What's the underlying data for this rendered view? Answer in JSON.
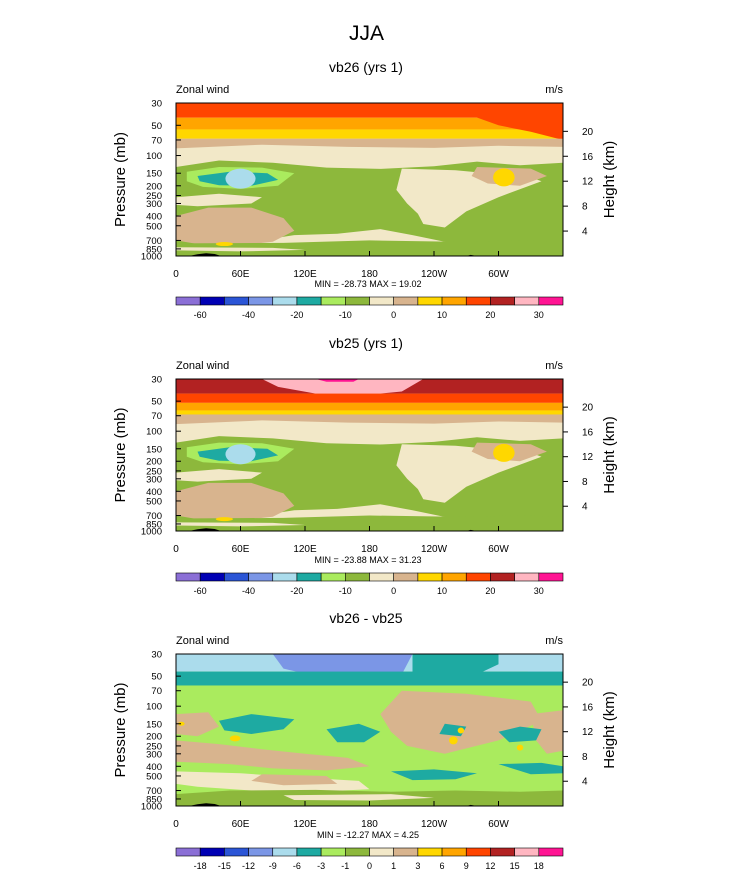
{
  "page_title": "JJA",
  "palette_main": [
    "#8b6fd6",
    "#0000b4",
    "#2b55d6",
    "#7b96e6",
    "#abdcec",
    "#1eaaa2",
    "#aaeb5e",
    "#8db83c",
    "#f2e8c8",
    "#d8b48e",
    "#ffd700",
    "#ffa500",
    "#ff4500",
    "#b22222",
    "#ffb6c1",
    "#ff1493"
  ],
  "palette_diff": [
    "#8b6fd6",
    "#0000b4",
    "#2b55d6",
    "#7b96e6",
    "#abdcec",
    "#1eaaa2",
    "#aaeb5e",
    "#8db83c",
    "#f2e8c8",
    "#d8b48e",
    "#ffd700",
    "#ffa500",
    "#ff4500",
    "#b22222",
    "#ffb6c1",
    "#ff1493"
  ],
  "chart_data": [
    {
      "type": "heatmap",
      "title": "vb26 (yrs 1)",
      "left_label": "Zonal wind",
      "right_label": "m/s",
      "ylabel": "Pressure (mb)",
      "ylabel_right": "Height (km)",
      "x_ticks": [
        "0",
        "60E",
        "120E",
        "180",
        "120W",
        "60W"
      ],
      "x_values": [
        0,
        60,
        120,
        180,
        240,
        300
      ],
      "xlim": [
        0,
        360
      ],
      "y_ticks": [
        "30",
        "50",
        "70",
        "100",
        "150",
        "200",
        "250",
        "300",
        "400",
        "500",
        "700",
        "850",
        "1000"
      ],
      "y_values": [
        30,
        50,
        70,
        100,
        150,
        200,
        250,
        300,
        400,
        500,
        700,
        850,
        1000
      ],
      "ylim": [
        1000,
        30
      ],
      "height_ticks": [
        "20",
        "16",
        "12",
        "8",
        "4"
      ],
      "height_values": [
        20,
        16,
        12,
        8,
        4
      ],
      "stats": "MIN = -28.73  MAX =  19.02",
      "colorbar_labels": [
        "-60",
        "-40",
        "-20",
        "-10",
        "0",
        "10",
        "20",
        "30"
      ],
      "colorbar_label_index": [
        1,
        3,
        5,
        7,
        9,
        11,
        13,
        15
      ],
      "colorbar_levels": [
        -70,
        -60,
        -50,
        -40,
        -30,
        -20,
        -15,
        -10,
        -5,
        0,
        5,
        10,
        15,
        20,
        25,
        30
      ]
    },
    {
      "type": "heatmap",
      "title": "vb25 (yrs 1)",
      "left_label": "Zonal wind",
      "right_label": "m/s",
      "ylabel": "Pressure (mb)",
      "ylabel_right": "Height (km)",
      "x_ticks": [
        "0",
        "60E",
        "120E",
        "180",
        "120W",
        "60W"
      ],
      "x_values": [
        0,
        60,
        120,
        180,
        240,
        300
      ],
      "xlim": [
        0,
        360
      ],
      "y_ticks": [
        "30",
        "50",
        "70",
        "100",
        "150",
        "200",
        "250",
        "300",
        "400",
        "500",
        "700",
        "850",
        "1000"
      ],
      "y_values": [
        30,
        50,
        70,
        100,
        150,
        200,
        250,
        300,
        400,
        500,
        700,
        850,
        1000
      ],
      "ylim": [
        1000,
        30
      ],
      "height_ticks": [
        "20",
        "16",
        "12",
        "8",
        "4"
      ],
      "height_values": [
        20,
        16,
        12,
        8,
        4
      ],
      "stats": "MIN = -23.88  MAX =  31.23",
      "colorbar_labels": [
        "-60",
        "-40",
        "-20",
        "-10",
        "0",
        "10",
        "20",
        "30"
      ],
      "colorbar_label_index": [
        1,
        3,
        5,
        7,
        9,
        11,
        13,
        15
      ],
      "colorbar_levels": [
        -70,
        -60,
        -50,
        -40,
        -30,
        -20,
        -15,
        -10,
        -5,
        0,
        5,
        10,
        15,
        20,
        25,
        30
      ]
    },
    {
      "type": "heatmap",
      "title": "vb26 - vb25",
      "left_label": "Zonal wind",
      "right_label": "m/s",
      "ylabel": "Pressure (mb)",
      "ylabel_right": "Height (km)",
      "x_ticks": [
        "0",
        "60E",
        "120E",
        "180",
        "120W",
        "60W"
      ],
      "x_values": [
        0,
        60,
        120,
        180,
        240,
        300
      ],
      "xlim": [
        0,
        360
      ],
      "y_ticks": [
        "30",
        "50",
        "70",
        "100",
        "150",
        "200",
        "250",
        "300",
        "400",
        "500",
        "700",
        "850",
        "1000"
      ],
      "y_values": [
        30,
        50,
        70,
        100,
        150,
        200,
        250,
        300,
        400,
        500,
        700,
        850,
        1000
      ],
      "ylim": [
        1000,
        30
      ],
      "height_ticks": [
        "20",
        "16",
        "12",
        "8",
        "4"
      ],
      "height_values": [
        20,
        16,
        12,
        8,
        4
      ],
      "stats": "MIN = -12.27  MAX =   4.25",
      "colorbar_labels": [
        "-18",
        "-15",
        "-12",
        "-9",
        "-6",
        "-3",
        "-1",
        "0",
        "1",
        "3",
        "6",
        "9",
        "12",
        "15",
        "18"
      ],
      "colorbar_label_index": [
        1,
        2,
        3,
        4,
        5,
        6,
        7,
        8,
        9,
        10,
        11,
        12,
        13,
        14,
        15
      ],
      "colorbar_levels": [
        -21,
        -18,
        -15,
        -12,
        -9,
        -6,
        -3,
        -1,
        0,
        1,
        3,
        6,
        9,
        12,
        15,
        18
      ]
    }
  ]
}
